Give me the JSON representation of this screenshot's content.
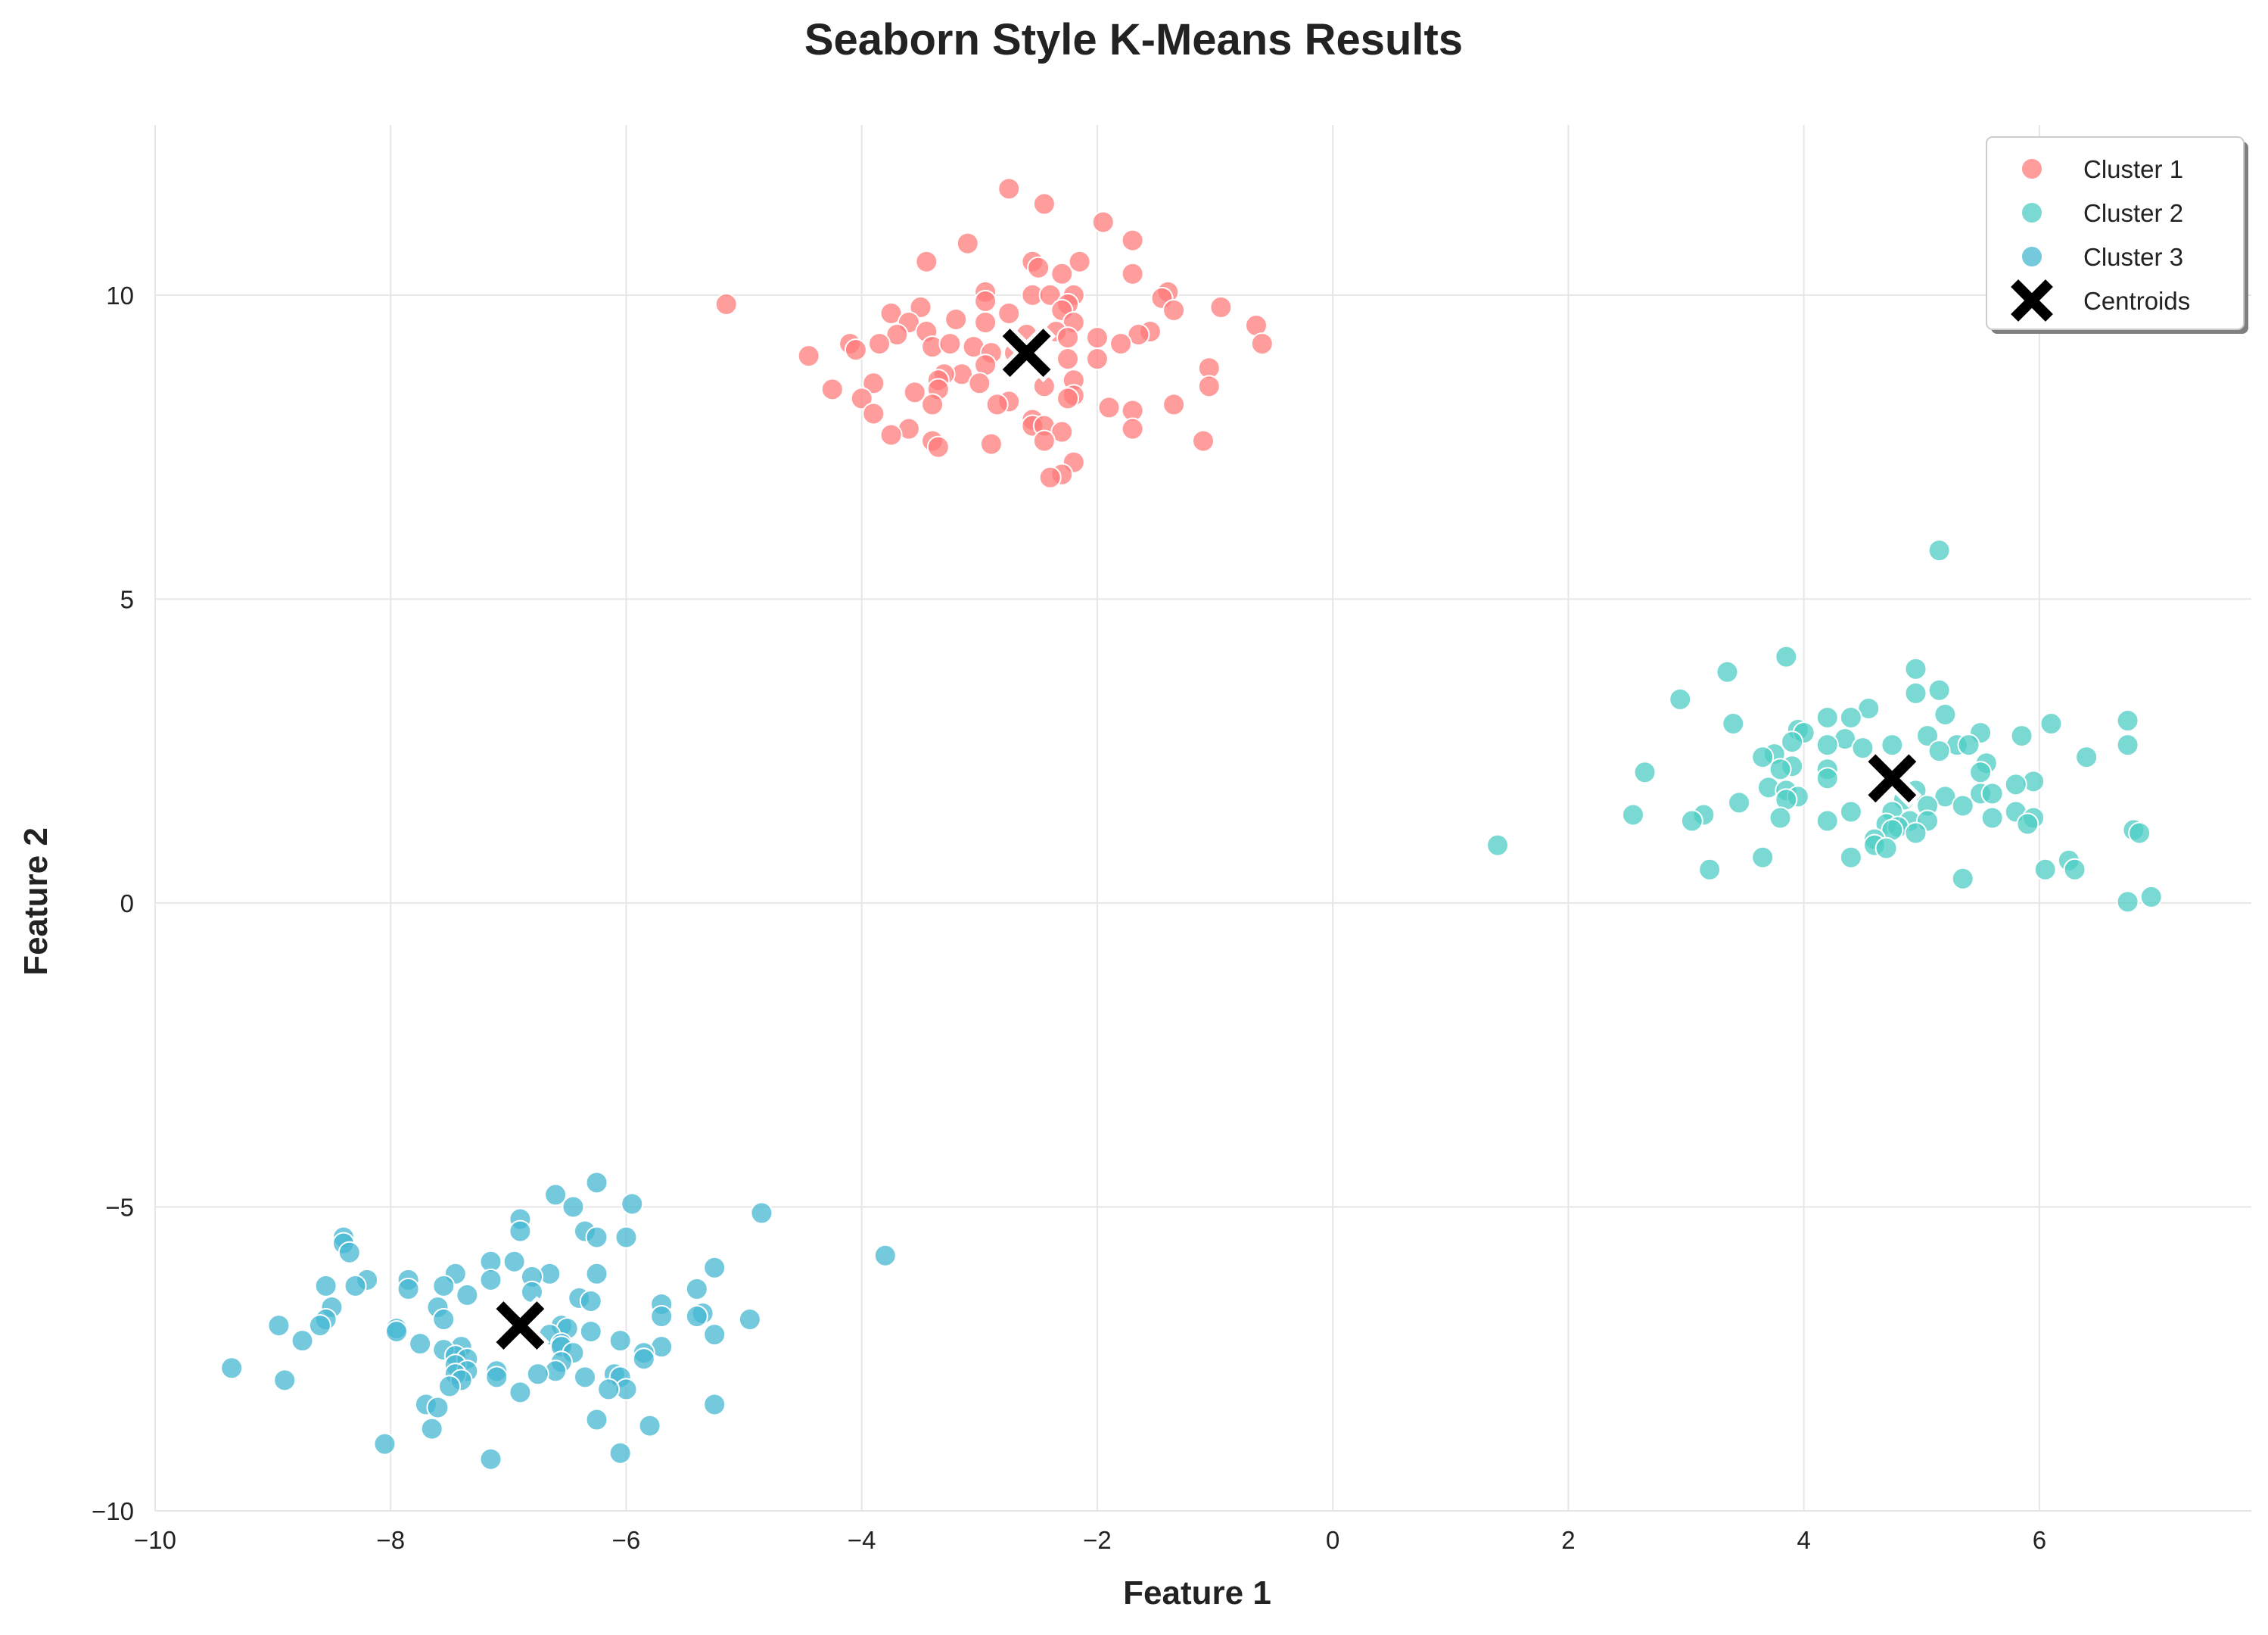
{
  "chart_data": {
    "type": "scatter",
    "title": "Seaborn Style K-Means Results",
    "xlabel": "Feature 1",
    "ylabel": "Feature 2",
    "xlim": [
      -10,
      7.8
    ],
    "ylim": [
      -10,
      12.8
    ],
    "xticks": [
      -10,
      -8,
      -6,
      -4,
      -2,
      0,
      2,
      4,
      6
    ],
    "xtick_labels": [
      "−10",
      "−8",
      "−6",
      "−4",
      "−2",
      "0",
      "2",
      "4",
      "6"
    ],
    "yticks": [
      -10,
      -5,
      0,
      5,
      10
    ],
    "ytick_labels": [
      "−10",
      "−5",
      "0",
      "5",
      "10"
    ],
    "grid": true,
    "legend_position": "top-right",
    "series": [
      {
        "name": "Cluster 1",
        "color": "#ff7b7b",
        "points": [
          [
            -2.75,
            11.75
          ],
          [
            -2.45,
            11.5
          ],
          [
            -1.95,
            11.2
          ],
          [
            -1.7,
            10.9
          ],
          [
            -3.1,
            10.85
          ],
          [
            -3.45,
            10.55
          ],
          [
            -2.55,
            10.55
          ],
          [
            -2.15,
            10.55
          ],
          [
            -2.5,
            10.45
          ],
          [
            -2.3,
            10.35
          ],
          [
            -1.7,
            10.35
          ],
          [
            -2.95,
            10.05
          ],
          [
            -1.4,
            10.05
          ],
          [
            -2.55,
            10.0
          ],
          [
            -2.4,
            10.0
          ],
          [
            -2.2,
            10.0
          ],
          [
            -1.45,
            9.95
          ],
          [
            -5.15,
            9.85
          ],
          [
            -2.95,
            9.9
          ],
          [
            -2.25,
            9.85
          ],
          [
            -2.3,
            9.75
          ],
          [
            -1.35,
            9.75
          ],
          [
            -0.95,
            9.8
          ],
          [
            -3.75,
            9.7
          ],
          [
            -2.75,
            9.7
          ],
          [
            -3.5,
            9.8
          ],
          [
            -3.2,
            9.6
          ],
          [
            -2.95,
            9.55
          ],
          [
            -3.6,
            9.55
          ],
          [
            -3.45,
            9.4
          ],
          [
            -2.2,
            9.55
          ],
          [
            -0.65,
            9.5
          ],
          [
            -1.55,
            9.4
          ],
          [
            -2.35,
            9.4
          ],
          [
            -2.6,
            9.35
          ],
          [
            -3.7,
            9.35
          ],
          [
            -1.65,
            9.35
          ],
          [
            -2.0,
            9.3
          ],
          [
            -2.25,
            9.3
          ],
          [
            -3.85,
            9.2
          ],
          [
            -4.1,
            9.2
          ],
          [
            -3.4,
            9.15
          ],
          [
            -3.05,
            9.15
          ],
          [
            -1.8,
            9.2
          ],
          [
            -0.6,
            9.2
          ],
          [
            -4.05,
            9.1
          ],
          [
            -3.25,
            9.2
          ],
          [
            -2.9,
            9.05
          ],
          [
            -2.7,
            9.05
          ],
          [
            -4.45,
            9.0
          ],
          [
            -2.0,
            8.95
          ],
          [
            -2.25,
            8.95
          ],
          [
            -2.95,
            8.85
          ],
          [
            -1.05,
            8.8
          ],
          [
            -3.15,
            8.7
          ],
          [
            -3.3,
            8.7
          ],
          [
            -3.35,
            8.6
          ],
          [
            -2.2,
            8.6
          ],
          [
            -3.9,
            8.55
          ],
          [
            -3.0,
            8.55
          ],
          [
            -2.45,
            8.5
          ],
          [
            -1.05,
            8.5
          ],
          [
            -4.25,
            8.45
          ],
          [
            -3.35,
            8.45
          ],
          [
            -3.55,
            8.4
          ],
          [
            -2.2,
            8.35
          ],
          [
            -2.25,
            8.3
          ],
          [
            -4.0,
            8.3
          ],
          [
            -3.4,
            8.2
          ],
          [
            -2.75,
            8.25
          ],
          [
            -2.85,
            8.2
          ],
          [
            -1.9,
            8.15
          ],
          [
            -1.35,
            8.2
          ],
          [
            -1.7,
            8.1
          ],
          [
            -3.9,
            8.05
          ],
          [
            -2.55,
            7.95
          ],
          [
            -2.55,
            7.85
          ],
          [
            -2.45,
            7.85
          ],
          [
            -3.6,
            7.8
          ],
          [
            -1.7,
            7.8
          ],
          [
            -2.3,
            7.75
          ],
          [
            -3.75,
            7.7
          ],
          [
            -3.4,
            7.6
          ],
          [
            -2.45,
            7.6
          ],
          [
            -1.1,
            7.6
          ],
          [
            -2.9,
            7.55
          ],
          [
            -3.35,
            7.5
          ],
          [
            -2.2,
            7.25
          ],
          [
            -2.3,
            7.05
          ],
          [
            -2.4,
            7.0
          ]
        ]
      },
      {
        "name": "Cluster 2",
        "color": "#4ecdc4",
        "points": [
          [
            5.15,
            5.8
          ],
          [
            3.85,
            4.05
          ],
          [
            4.95,
            3.85
          ],
          [
            3.35,
            3.8
          ],
          [
            5.15,
            3.5
          ],
          [
            4.95,
            3.45
          ],
          [
            2.95,
            3.35
          ],
          [
            4.55,
            3.2
          ],
          [
            5.2,
            3.1
          ],
          [
            4.2,
            3.05
          ],
          [
            4.4,
            3.05
          ],
          [
            6.75,
            3.0
          ],
          [
            3.4,
            2.95
          ],
          [
            6.1,
            2.95
          ],
          [
            3.95,
            2.85
          ],
          [
            4.0,
            2.8
          ],
          [
            5.5,
            2.8
          ],
          [
            5.85,
            2.75
          ],
          [
            5.05,
            2.75
          ],
          [
            4.35,
            2.7
          ],
          [
            3.9,
            2.65
          ],
          [
            5.3,
            2.6
          ],
          [
            5.4,
            2.6
          ],
          [
            6.75,
            2.6
          ],
          [
            4.75,
            2.6
          ],
          [
            4.2,
            2.6
          ],
          [
            4.5,
            2.55
          ],
          [
            5.15,
            2.5
          ],
          [
            3.75,
            2.45
          ],
          [
            3.65,
            2.4
          ],
          [
            6.4,
            2.4
          ],
          [
            5.55,
            2.3
          ],
          [
            3.9,
            2.25
          ],
          [
            4.2,
            2.2
          ],
          [
            3.8,
            2.2
          ],
          [
            2.65,
            2.15
          ],
          [
            5.5,
            2.15
          ],
          [
            4.2,
            2.05
          ],
          [
            5.95,
            2.0
          ],
          [
            5.8,
            1.95
          ],
          [
            3.7,
            1.9
          ],
          [
            4.95,
            1.85
          ],
          [
            3.85,
            1.85
          ],
          [
            5.5,
            1.8
          ],
          [
            5.6,
            1.8
          ],
          [
            5.2,
            1.75
          ],
          [
            3.95,
            1.75
          ],
          [
            3.85,
            1.7
          ],
          [
            4.85,
            1.7
          ],
          [
            3.45,
            1.65
          ],
          [
            5.35,
            1.6
          ],
          [
            5.05,
            1.6
          ],
          [
            4.75,
            1.5
          ],
          [
            5.8,
            1.5
          ],
          [
            4.4,
            1.5
          ],
          [
            3.15,
            1.45
          ],
          [
            2.55,
            1.45
          ],
          [
            3.8,
            1.4
          ],
          [
            5.95,
            1.4
          ],
          [
            5.6,
            1.4
          ],
          [
            3.05,
            1.35
          ],
          [
            4.9,
            1.35
          ],
          [
            5.05,
            1.35
          ],
          [
            4.2,
            1.35
          ],
          [
            4.7,
            1.3
          ],
          [
            5.9,
            1.3
          ],
          [
            4.8,
            1.25
          ],
          [
            4.75,
            1.2
          ],
          [
            6.8,
            1.2
          ],
          [
            4.95,
            1.15
          ],
          [
            6.85,
            1.15
          ],
          [
            4.6,
            1.05
          ],
          [
            4.6,
            0.95
          ],
          [
            4.7,
            0.9
          ],
          [
            1.4,
            0.95
          ],
          [
            3.65,
            0.75
          ],
          [
            4.4,
            0.75
          ],
          [
            6.25,
            0.7
          ],
          [
            3.2,
            0.55
          ],
          [
            6.3,
            0.55
          ],
          [
            6.05,
            0.55
          ],
          [
            5.35,
            0.4
          ],
          [
            6.95,
            0.1
          ],
          [
            6.75,
            0.02
          ]
        ]
      },
      {
        "name": "Cluster 3",
        "color": "#45b7d1",
        "points": [
          [
            -6.25,
            -4.6
          ],
          [
            -6.6,
            -4.8
          ],
          [
            -5.95,
            -4.95
          ],
          [
            -6.45,
            -5.0
          ],
          [
            -4.85,
            -5.1
          ],
          [
            -6.9,
            -5.2
          ],
          [
            -6.9,
            -5.4
          ],
          [
            -6.35,
            -5.4
          ],
          [
            -6.25,
            -5.5
          ],
          [
            -6.0,
            -5.5
          ],
          [
            -8.4,
            -5.5
          ],
          [
            -8.4,
            -5.6
          ],
          [
            -8.35,
            -5.75
          ],
          [
            -3.8,
            -5.8
          ],
          [
            -7.15,
            -5.9
          ],
          [
            -6.95,
            -5.9
          ],
          [
            -5.25,
            -6.0
          ],
          [
            -7.45,
            -6.1
          ],
          [
            -6.65,
            -6.1
          ],
          [
            -6.25,
            -6.1
          ],
          [
            -6.8,
            -6.15
          ],
          [
            -7.15,
            -6.2
          ],
          [
            -7.85,
            -6.2
          ],
          [
            -8.2,
            -6.2
          ],
          [
            -8.3,
            -6.3
          ],
          [
            -7.55,
            -6.3
          ],
          [
            -8.55,
            -6.3
          ],
          [
            -5.4,
            -6.35
          ],
          [
            -7.85,
            -6.35
          ],
          [
            -6.8,
            -6.4
          ],
          [
            -7.35,
            -6.45
          ],
          [
            -6.4,
            -6.5
          ],
          [
            -6.3,
            -6.55
          ],
          [
            -5.7,
            -6.6
          ],
          [
            -8.5,
            -6.65
          ],
          [
            -7.6,
            -6.65
          ],
          [
            -5.35,
            -6.75
          ],
          [
            -5.4,
            -6.8
          ],
          [
            -5.7,
            -6.8
          ],
          [
            -4.95,
            -6.85
          ],
          [
            -7.55,
            -6.85
          ],
          [
            -8.55,
            -6.85
          ],
          [
            -8.6,
            -6.95
          ],
          [
            -8.95,
            -6.95
          ],
          [
            -6.55,
            -6.95
          ],
          [
            -6.5,
            -7.0
          ],
          [
            -7.95,
            -7.0
          ],
          [
            -7.95,
            -7.05
          ],
          [
            -6.3,
            -7.05
          ],
          [
            -6.65,
            -7.1
          ],
          [
            -5.25,
            -7.1
          ],
          [
            -8.75,
            -7.2
          ],
          [
            -6.05,
            -7.2
          ],
          [
            -7.75,
            -7.25
          ],
          [
            -6.55,
            -7.25
          ],
          [
            -7.4,
            -7.3
          ],
          [
            -6.55,
            -7.3
          ],
          [
            -5.7,
            -7.3
          ],
          [
            -7.55,
            -7.35
          ],
          [
            -6.45,
            -7.4
          ],
          [
            -5.85,
            -7.4
          ],
          [
            -7.45,
            -7.45
          ],
          [
            -5.85,
            -7.5
          ],
          [
            -7.35,
            -7.5
          ],
          [
            -6.55,
            -7.55
          ],
          [
            -7.45,
            -7.6
          ],
          [
            -7.35,
            -7.7
          ],
          [
            -6.6,
            -7.7
          ],
          [
            -7.1,
            -7.7
          ],
          [
            -6.75,
            -7.75
          ],
          [
            -6.1,
            -7.75
          ],
          [
            -7.1,
            -7.8
          ],
          [
            -7.45,
            -7.75
          ],
          [
            -6.35,
            -7.8
          ],
          [
            -6.05,
            -7.8
          ],
          [
            -7.4,
            -7.85
          ],
          [
            -7.5,
            -7.95
          ],
          [
            -6.0,
            -8.0
          ],
          [
            -6.15,
            -8.0
          ],
          [
            -6.9,
            -8.05
          ],
          [
            -9.35,
            -7.65
          ],
          [
            -8.9,
            -7.85
          ],
          [
            -7.7,
            -8.25
          ],
          [
            -7.6,
            -8.3
          ],
          [
            -5.25,
            -8.25
          ],
          [
            -6.25,
            -8.5
          ],
          [
            -5.8,
            -8.6
          ],
          [
            -7.65,
            -8.65
          ],
          [
            -8.05,
            -8.9
          ],
          [
            -6.05,
            -9.05
          ],
          [
            -7.15,
            -9.15
          ]
        ]
      }
    ],
    "centroids": {
      "name": "Centroids",
      "color": "#000000",
      "points": [
        [
          -2.6,
          9.05
        ],
        [
          4.75,
          2.05
        ],
        [
          -6.9,
          -6.95
        ]
      ]
    }
  }
}
